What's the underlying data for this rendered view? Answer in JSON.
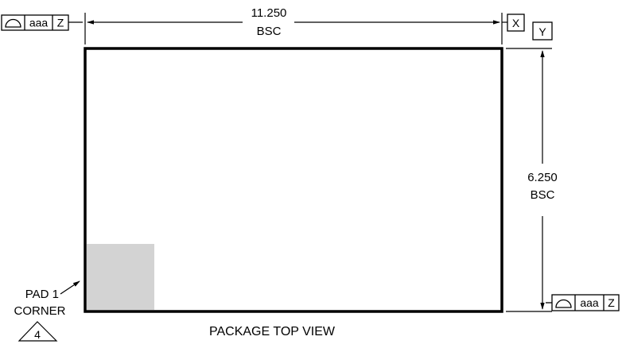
{
  "drawing": {
    "caption": "PACKAGE TOP VIEW",
    "width_dimension": {
      "value": "11.250",
      "note": "BSC"
    },
    "height_dimension": {
      "value": "6.250",
      "note": "BSC"
    },
    "datums": {
      "x": "X",
      "y": "Y"
    },
    "feature_control_frames": {
      "top_left": {
        "symbol": "profile-of-surface",
        "tolerance": "aaa",
        "datum": "Z"
      },
      "bottom_right": {
        "symbol": "profile-of-surface",
        "tolerance": "aaa",
        "datum": "Z"
      }
    },
    "pad1_label": {
      "line1": "PAD 1",
      "line2": "CORNER"
    },
    "note_flag": "4",
    "colors": {
      "outline": "#000000",
      "pad_fill": "#d3d3d3",
      "background": "#ffffff"
    }
  }
}
